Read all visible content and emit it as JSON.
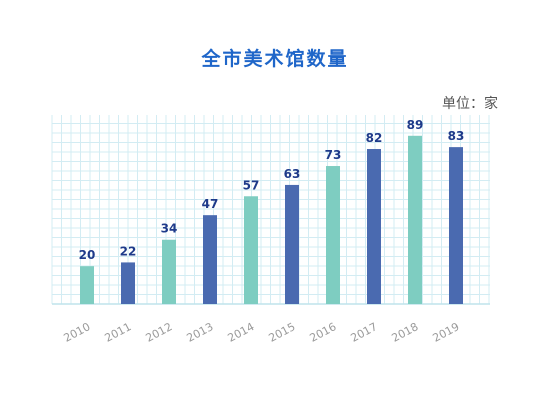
{
  "chart_data": {
    "type": "bar",
    "title": "全市美术馆数量",
    "unit_label": "单位：家",
    "categories": [
      "2010",
      "2011",
      "2012",
      "2013",
      "2014",
      "2015",
      "2016",
      "2017",
      "2018",
      "2019"
    ],
    "values": [
      20,
      22,
      34,
      47,
      57,
      63,
      73,
      82,
      89,
      83
    ],
    "ylim": [
      0,
      100
    ],
    "grid": true,
    "colors": {
      "teal": "#7ecdc1",
      "navy": "#4a6ab0",
      "label": "#1e3a8a",
      "grid": "#d3ecf3"
    },
    "bar_color_keys": [
      "teal",
      "navy",
      "teal",
      "navy",
      "teal",
      "navy",
      "teal",
      "navy",
      "teal",
      "navy"
    ]
  }
}
